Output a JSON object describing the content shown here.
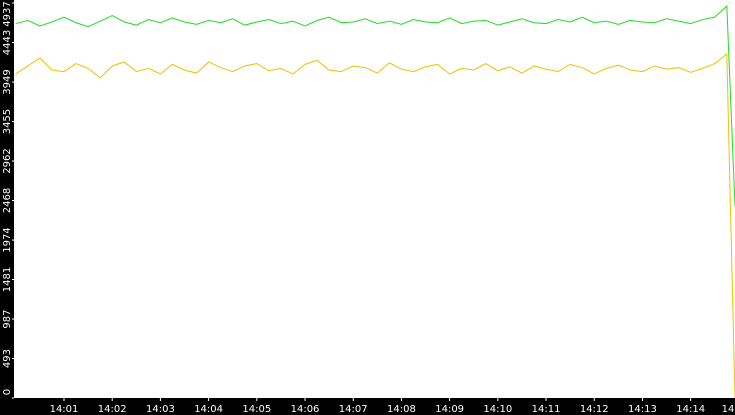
{
  "chart_data": {
    "type": "line",
    "x": [
      840,
      840.25,
      840.5,
      840.75,
      841,
      841.25,
      841.5,
      841.75,
      842,
      842.25,
      842.5,
      842.75,
      843,
      843.25,
      843.5,
      843.75,
      844,
      844.25,
      844.5,
      844.75,
      845,
      845.25,
      845.5,
      845.75,
      846,
      846.25,
      846.5,
      846.75,
      847,
      847.25,
      847.5,
      847.75,
      848,
      848.25,
      848.5,
      848.75,
      849,
      849.25,
      849.5,
      849.75,
      850,
      850.25,
      850.5,
      850.75,
      851,
      851.25,
      851.5,
      851.75,
      852,
      852.25,
      852.5,
      852.75,
      853,
      853.25,
      853.5,
      853.75,
      854,
      854.25,
      854.5,
      854.75,
      854.92
    ],
    "series": [
      {
        "color": "#22dd22",
        "values": [
          4680,
          4720,
          4650,
          4700,
          4760,
          4690,
          4640,
          4710,
          4780,
          4700,
          4660,
          4730,
          4690,
          4750,
          4700,
          4670,
          4720,
          4690,
          4740,
          4660,
          4700,
          4730,
          4680,
          4710,
          4650,
          4720,
          4760,
          4690,
          4700,
          4740,
          4680,
          4710,
          4670,
          4730,
          4700,
          4690,
          4750,
          4680,
          4710,
          4720,
          4660,
          4700,
          4740,
          4690,
          4680,
          4730,
          4700,
          4760,
          4690,
          4710,
          4670,
          4720,
          4700,
          4690,
          4740,
          4710,
          4680,
          4730,
          4760,
          4900,
          2400
        ]
      },
      {
        "color": "#f0c000",
        "values": [
          4050,
          4150,
          4250,
          4100,
          4080,
          4180,
          4120,
          4000,
          4150,
          4200,
          4080,
          4120,
          4050,
          4170,
          4100,
          4060,
          4200,
          4130,
          4080,
          4150,
          4180,
          4090,
          4120,
          4050,
          4170,
          4220,
          4100,
          4080,
          4150,
          4130,
          4060,
          4190,
          4110,
          4080,
          4140,
          4170,
          4050,
          4120,
          4100,
          4180,
          4090,
          4140,
          4060,
          4150,
          4110,
          4080,
          4170,
          4130,
          4050,
          4120,
          4160,
          4100,
          4080,
          4150,
          4110,
          4130,
          4070,
          4120,
          4180,
          4300,
          0
        ]
      }
    ],
    "xlim": [
      840,
      854.92
    ],
    "xticks": [
      {
        "value": 841,
        "label": "14:01"
      },
      {
        "value": 842,
        "label": "14:02"
      },
      {
        "value": 843,
        "label": "14:03"
      },
      {
        "value": 844,
        "label": "14:04"
      },
      {
        "value": 845,
        "label": "14:05"
      },
      {
        "value": 846,
        "label": "14:06"
      },
      {
        "value": 847,
        "label": "14:07"
      },
      {
        "value": 848,
        "label": "14:08"
      },
      {
        "value": 849,
        "label": "14:09"
      },
      {
        "value": 850,
        "label": "14:10"
      },
      {
        "value": 851,
        "label": "14:11"
      },
      {
        "value": 852,
        "label": "14:12"
      },
      {
        "value": 853,
        "label": "14:13"
      },
      {
        "value": 854,
        "label": "14:14"
      },
      {
        "value": 855,
        "label": "14"
      }
    ],
    "ylim": [
      0,
      4937
    ],
    "yticks": [
      0,
      493,
      987,
      1481,
      1974,
      2468,
      2962,
      3455,
      3949,
      4443,
      4937
    ]
  }
}
